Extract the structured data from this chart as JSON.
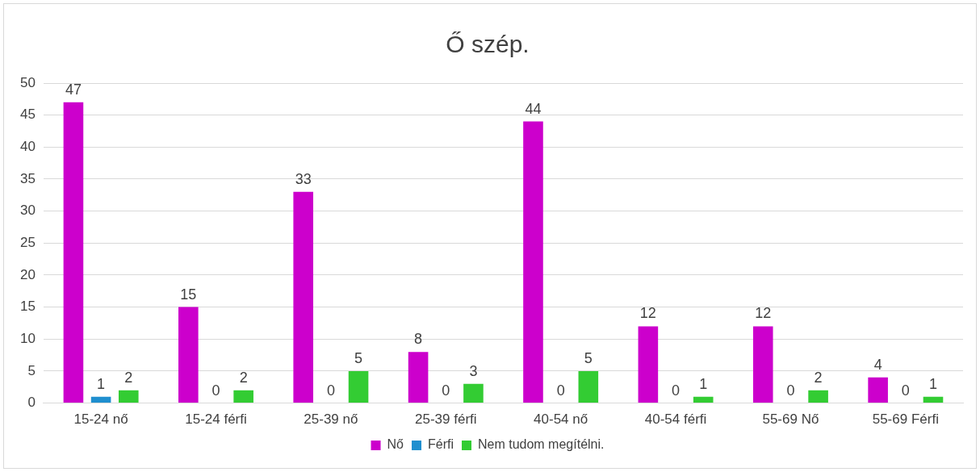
{
  "chart_data": {
    "type": "bar",
    "title": "Ő szép.",
    "categories": [
      "15-24 nő",
      "15-24 férfi",
      "25-39 nő",
      "25-39 férfi",
      "40-54 nő",
      "40-54 férfi",
      "55-69 Nő",
      "55-69 Férfi"
    ],
    "series": [
      {
        "name": "Nő",
        "color": "#cc00cc",
        "values": [
          47,
          15,
          33,
          8,
          44,
          12,
          12,
          4
        ]
      },
      {
        "name": "Férfi",
        "color": "#1f8fcf",
        "values": [
          1,
          0,
          0,
          0,
          0,
          0,
          0,
          0
        ]
      },
      {
        "name": "Nem tudom megítélni.",
        "color": "#33cc33",
        "values": [
          2,
          2,
          5,
          3,
          5,
          1,
          2,
          1
        ]
      }
    ],
    "ylim": [
      0,
      50
    ],
    "yticks": [
      0,
      5,
      10,
      15,
      20,
      25,
      30,
      35,
      40,
      45,
      50
    ],
    "grid": "y",
    "legend": "bottom",
    "data_labels": true
  }
}
